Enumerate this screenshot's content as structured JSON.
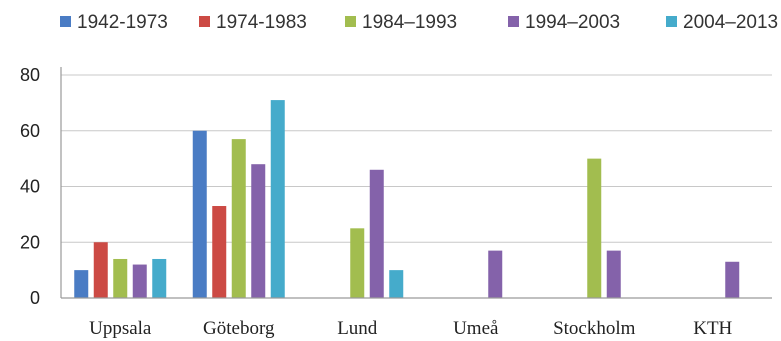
{
  "chart_data": {
    "type": "bar",
    "categories": [
      "Uppsala",
      "Göteborg",
      "Lund",
      "Umeå",
      "Stockholm",
      "KTH"
    ],
    "series": [
      {
        "name": "1942-1973",
        "color": "#4a7cc4",
        "values": [
          10,
          60,
          0,
          0,
          0,
          0
        ]
      },
      {
        "name": "1974-1983",
        "color": "#cc4a44",
        "values": [
          20,
          33,
          0,
          0,
          0,
          0
        ]
      },
      {
        "name": "1984–1993",
        "color": "#a2bd4f",
        "values": [
          14,
          57,
          25,
          0,
          50,
          0
        ]
      },
      {
        "name": "1994–2003",
        "color": "#8462aa",
        "values": [
          12,
          48,
          46,
          17,
          17,
          13
        ]
      },
      {
        "name": "2004–2013",
        "color": "#45abcb",
        "values": [
          14,
          71,
          10,
          0,
          0,
          0
        ]
      }
    ],
    "yticks": [
      0,
      20,
      40,
      60,
      80
    ],
    "ylim": [
      0,
      80
    ],
    "grid": true,
    "legend_position": "top"
  }
}
